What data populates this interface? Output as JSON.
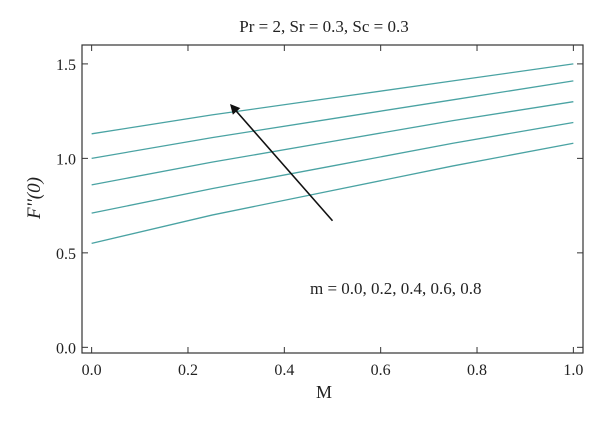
{
  "chart_data": {
    "type": "line",
    "title": "Pr = 2, Sr = 0.3, Sc = 0.3",
    "xlabel": "M",
    "ylabel": "F''(0)",
    "xlim": [
      -0.02,
      1.02
    ],
    "ylim": [
      -0.03,
      1.6
    ],
    "xticks": [
      0.0,
      0.2,
      0.4,
      0.6,
      0.8,
      1.0
    ],
    "xtick_labels": [
      "0.0",
      "0.2",
      "0.4",
      "0.6",
      "0.8",
      "1.0"
    ],
    "yticks": [
      0.0,
      0.5,
      1.0,
      1.5
    ],
    "ytick_labels": [
      "0.0",
      "0.5",
      "1.0",
      "1.5"
    ],
    "grid": false,
    "line_color": "#4aa3a3",
    "annotation": "m = 0.0, 0.2, 0.4, 0.6, 0.8",
    "arrow": {
      "from": [
        0.5,
        0.67
      ],
      "to": [
        0.29,
        1.28
      ]
    },
    "series": [
      {
        "x": [
          0.0,
          0.25,
          0.5,
          0.75,
          1.0
        ],
        "y": [
          0.55,
          0.7,
          0.83,
          0.96,
          1.08
        ]
      },
      {
        "x": [
          0.0,
          0.25,
          0.5,
          0.75,
          1.0
        ],
        "y": [
          0.71,
          0.84,
          0.96,
          1.08,
          1.19
        ]
      },
      {
        "x": [
          0.0,
          0.25,
          0.5,
          0.75,
          1.0
        ],
        "y": [
          0.86,
          0.98,
          1.09,
          1.2,
          1.3
        ]
      },
      {
        "x": [
          0.0,
          0.25,
          0.5,
          0.75,
          1.0
        ],
        "y": [
          1.0,
          1.11,
          1.21,
          1.31,
          1.41
        ]
      },
      {
        "x": [
          0.0,
          0.25,
          0.5,
          0.75,
          1.0
        ],
        "y": [
          1.13,
          1.23,
          1.32,
          1.41,
          1.5
        ]
      }
    ]
  }
}
